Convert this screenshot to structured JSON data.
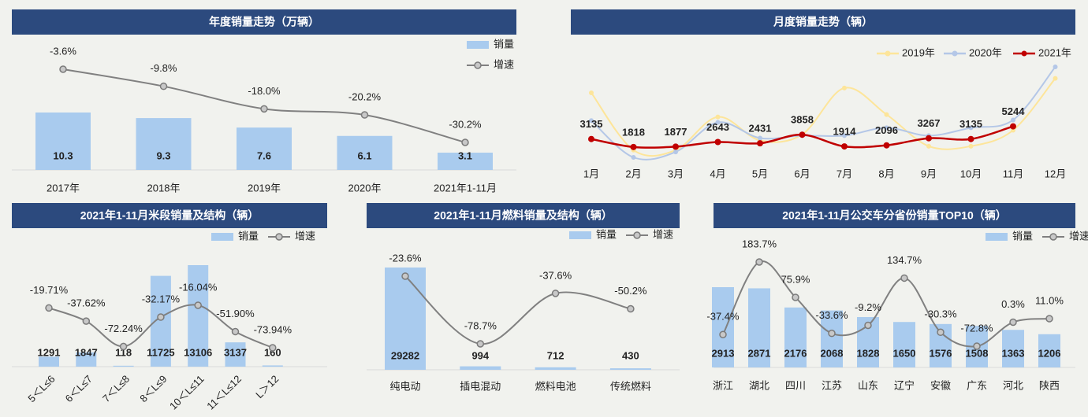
{
  "chart_data": [
    {
      "type": "bar",
      "title": "年度销量走势（万辆）",
      "legend": "top-right",
      "categories": [
        "2017年",
        "2018年",
        "2019年",
        "2020年",
        "2021年1-11月"
      ],
      "series": [
        {
          "name": "销量",
          "color": "#a9cbee",
          "values": [
            10.3,
            9.3,
            7.6,
            6.1,
            3.1
          ]
        },
        {
          "name": "增速",
          "color": "#808080",
          "type": "line",
          "axis": "y2",
          "values": [
            -3.6,
            -9.8,
            -18.0,
            -20.2,
            -30.2
          ],
          "value_labels": [
            "-3.6%",
            "-9.8%",
            "-18.0%",
            "-20.2%",
            "-30.2%"
          ]
        }
      ]
    },
    {
      "type": "line",
      "title": "月度销量走势（辆）",
      "legend": "top-right",
      "categories": [
        "1月",
        "2月",
        "3月",
        "4月",
        "5月",
        "6月",
        "7月",
        "8月",
        "9月",
        "10月",
        "11月",
        "12月"
      ],
      "series": [
        {
          "name": "2019年",
          "color": "#fde59a",
          "values": [
            10800,
            1300,
            1300,
            6800,
            2900,
            3900,
            11600,
            7200,
            1950,
            1950,
            4600,
            13200
          ]
        },
        {
          "name": "2020年",
          "color": "#b4c7e7",
          "values": [
            6200,
            100,
            1000,
            5900,
            3300,
            3700,
            3700,
            5000,
            3700,
            5000,
            6300,
            15100
          ]
        },
        {
          "name": "2021年",
          "color": "#c00000",
          "data_labels": true,
          "values": [
            3135,
            1818,
            1877,
            2643,
            2431,
            3858,
            1914,
            2096,
            3267,
            3135,
            5244,
            null
          ]
        }
      ]
    },
    {
      "type": "bar",
      "title": "2021年1-11月米段销量及结构（辆）",
      "legend": "top-right",
      "categories": [
        "5＜L≤6",
        "6＜L≤7",
        "7＜L≤8",
        "8＜L≤9",
        "10＜L≤11",
        "11＜L≤12",
        "L＞12"
      ],
      "series": [
        {
          "name": "销量",
          "color": "#a9cbee",
          "values": [
            1291,
            1847,
            118,
            11725,
            13106,
            3137,
            160
          ]
        },
        {
          "name": "增速",
          "color": "#808080",
          "type": "line",
          "axis": "y2",
          "values": [
            -19.71,
            -37.62,
            -72.24,
            -32.17,
            -16.04,
            -51.9,
            -73.94
          ],
          "value_labels": [
            "-19.71%",
            "-37.62%",
            "-72.24%",
            "-32.17%",
            "-16.04%",
            "-51.90%",
            "-73.94%"
          ]
        }
      ]
    },
    {
      "type": "bar",
      "title": "2021年1-11月燃料销量及结构（辆）",
      "legend": "top-right",
      "categories": [
        "纯电动",
        "插电混动",
        "燃料电池",
        "传统燃料"
      ],
      "series": [
        {
          "name": "销量",
          "color": "#a9cbee",
          "values": [
            29282,
            994,
            712,
            430
          ]
        },
        {
          "name": "增速",
          "color": "#808080",
          "type": "line",
          "axis": "y2",
          "values": [
            -23.6,
            -78.7,
            -37.6,
            -50.2
          ],
          "value_labels": [
            "-23.6%",
            "-78.7%",
            "-37.6%",
            "-50.2%"
          ]
        }
      ]
    },
    {
      "type": "bar",
      "title": "2021年1-11月公交车分省份销量TOP10（辆）",
      "legend": "top-right",
      "categories": [
        "浙江",
        "湖北",
        "四川",
        "江苏",
        "山东",
        "辽宁",
        "安徽",
        "广东",
        "河北",
        "陕西"
      ],
      "series": [
        {
          "name": "销量",
          "color": "#a9cbee",
          "values": [
            2913,
            2871,
            2176,
            2068,
            1828,
            1650,
            1576,
            1508,
            1363,
            1206
          ]
        },
        {
          "name": "增速",
          "color": "#808080",
          "type": "line",
          "axis": "y2",
          "values": [
            -37.4,
            183.7,
            75.9,
            -33.6,
            -9.2,
            134.7,
            -30.3,
            -72.8,
            0.3,
            11.0
          ],
          "value_labels": [
            "-37.4%",
            "183.7%",
            "75.9%",
            "-33.6%",
            "-9.2%",
            "134.7%",
            "-30.3%",
            "-72.8%",
            "0.3%",
            "11.0%"
          ]
        }
      ]
    }
  ]
}
